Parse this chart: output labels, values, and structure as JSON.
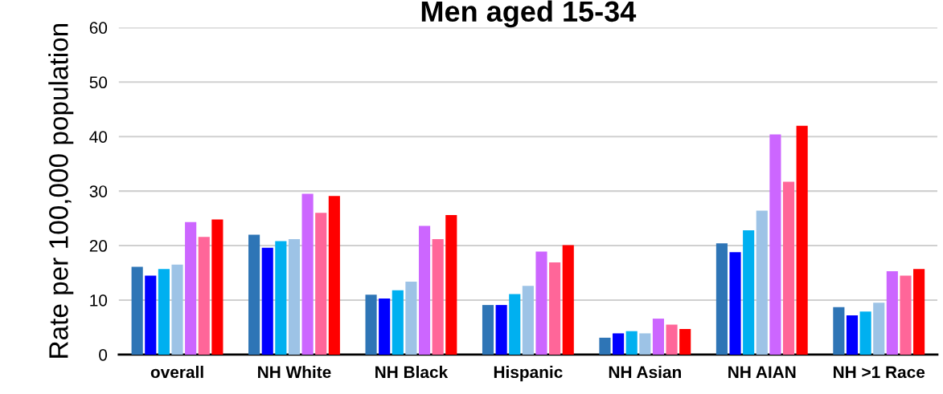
{
  "chart_data": {
    "type": "bar",
    "title": "Men aged 15-34",
    "ylabel": "Rate per 100,000 population",
    "categories": [
      "overall",
      "NH White",
      "NH Black",
      "Hispanic",
      "NH Asian",
      "NH AIAN",
      "NH >1 Race"
    ],
    "series": [
      {
        "color": "#2e75b6",
        "values": [
          16.1,
          22.0,
          11.0,
          9.1,
          3.1,
          20.4,
          8.7
        ]
      },
      {
        "color": "#0000ff",
        "values": [
          14.5,
          19.6,
          10.3,
          9.1,
          3.9,
          18.8,
          7.2
        ]
      },
      {
        "color": "#00b0f0",
        "values": [
          15.7,
          20.8,
          11.8,
          11.1,
          4.3,
          22.8,
          7.9
        ]
      },
      {
        "color": "#9dc3e6",
        "values": [
          16.5,
          21.2,
          13.4,
          12.6,
          3.9,
          26.4,
          9.5
        ]
      },
      {
        "color": "#cc66ff",
        "values": [
          24.3,
          29.5,
          23.6,
          18.9,
          6.6,
          40.4,
          15.3
        ]
      },
      {
        "color": "#ff6699",
        "values": [
          21.6,
          26.0,
          21.2,
          16.9,
          5.5,
          31.7,
          14.5
        ]
      },
      {
        "color": "#ff0000",
        "values": [
          24.8,
          29.1,
          25.6,
          20.1,
          4.7,
          42.0,
          15.7
        ]
      }
    ],
    "ylim": [
      0,
      60
    ],
    "yticks": [
      0,
      10,
      20,
      30,
      40,
      50,
      60
    ],
    "grid": "y",
    "legend": false
  }
}
